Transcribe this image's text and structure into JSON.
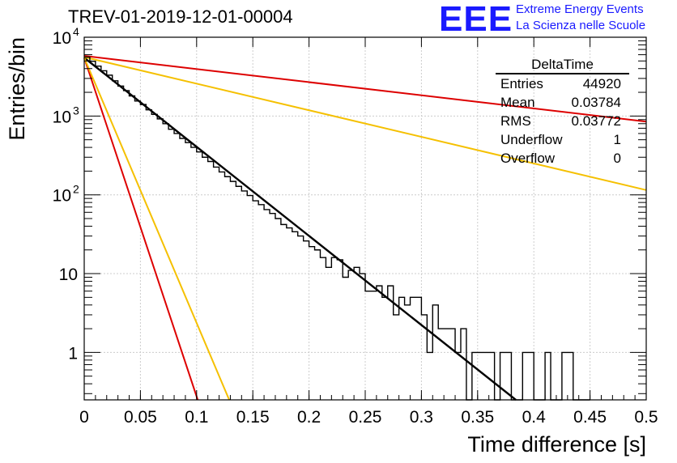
{
  "header": {
    "title": "TREV-01-2019-12-01-00004",
    "logo": "EEE",
    "logo_line1": "Extreme Energy Events",
    "logo_line2": "La Scienza nelle Scuole"
  },
  "stats": {
    "name": "DeltaTime",
    "rows": [
      {
        "label": "Entries",
        "value": "44920"
      },
      {
        "label": "Mean",
        "value": "0.03784"
      },
      {
        "label": "RMS",
        "value": "0.03772"
      },
      {
        "label": "Underflow",
        "value": "1"
      },
      {
        "label": "Overflow",
        "value": "0"
      }
    ]
  },
  "colors": {
    "histogram": "#000000",
    "fit": "#000000",
    "red_lines": "#dd0000",
    "orange_lines": "#f5c000",
    "grid": "#cccccc"
  },
  "chart_data": {
    "type": "line",
    "xlabel": "Time difference [s]",
    "ylabel": "Entries/bin",
    "xlim": [
      0,
      0.5
    ],
    "ylim": [
      0.25,
      10000
    ],
    "yscale": "log",
    "grid": true,
    "x_ticks": [
      "0",
      "0.05",
      "0.1",
      "0.15",
      "0.2",
      "0.25",
      "0.3",
      "0.35",
      "0.4",
      "0.45",
      "0.5"
    ],
    "y_ticks": [
      {
        "value": 1,
        "label": "1"
      },
      {
        "value": 10,
        "label": "10"
      },
      {
        "value": 100,
        "label": "10",
        "exp": "2"
      },
      {
        "value": 1000,
        "label": "10",
        "exp": "3"
      },
      {
        "value": 10000,
        "label": "10",
        "exp": "4"
      }
    ],
    "histogram": {
      "bin_width": 0.005,
      "counts": [
        5600,
        4950,
        4300,
        3750,
        3300,
        2800,
        2400,
        2100,
        1800,
        1550,
        1400,
        1200,
        1050,
        920,
        800,
        680,
        600,
        520,
        460,
        400,
        350,
        300,
        265,
        225,
        195,
        170,
        148,
        128,
        112,
        98,
        84,
        75,
        65,
        58,
        50,
        42,
        38,
        34,
        30,
        26,
        22,
        20,
        16,
        12,
        16,
        15,
        9,
        11,
        12,
        10,
        6,
        6,
        7,
        5,
        7,
        3,
        5,
        4,
        5,
        5,
        3,
        1,
        4,
        2,
        2,
        2,
        1,
        2,
        0,
        1,
        1,
        1,
        1,
        0,
        1,
        1,
        0,
        0,
        1,
        1,
        0,
        0,
        1,
        0,
        0,
        1,
        1,
        0,
        0,
        0
      ]
    },
    "lines": [
      {
        "role": "fit",
        "color": "black",
        "points": [
          [
            0.0,
            5500
          ],
          [
            0.384,
            0.25
          ]
        ]
      },
      {
        "role": "red",
        "color": "red",
        "points": [
          [
            0.0,
            5500
          ],
          [
            0.101,
            0.25
          ]
        ]
      },
      {
        "role": "orange",
        "color": "orange",
        "points": [
          [
            0.0,
            5500
          ],
          [
            0.129,
            0.25
          ]
        ]
      },
      {
        "role": "red",
        "color": "red",
        "points": [
          [
            0.0,
            5800
          ],
          [
            0.5,
            850
          ]
        ]
      },
      {
        "role": "orange",
        "color": "orange",
        "points": [
          [
            0.0,
            5600
          ],
          [
            0.5,
            115
          ]
        ]
      }
    ]
  }
}
